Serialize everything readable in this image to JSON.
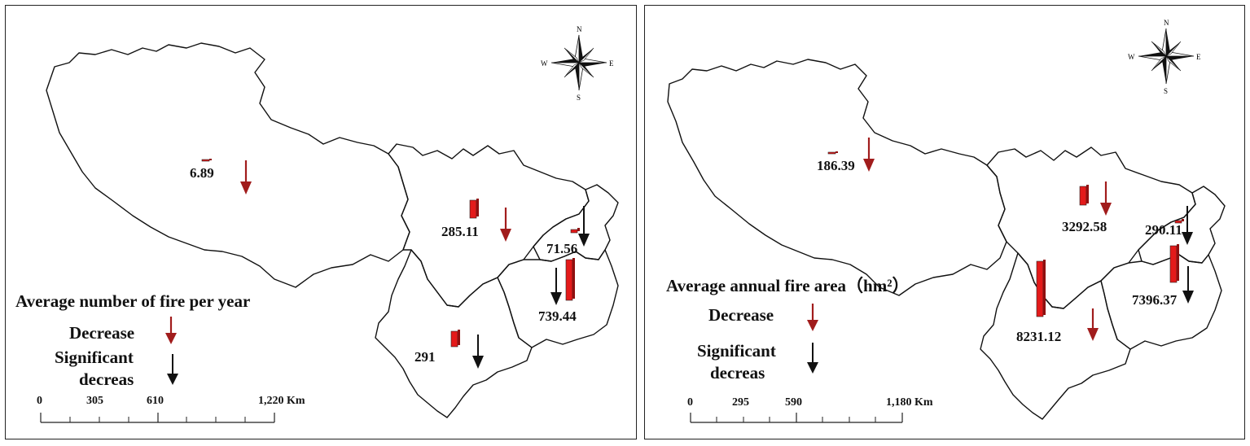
{
  "colors": {
    "decrease_arrow": "#a11c1c",
    "significant_arrow": "#111111",
    "bar_fill": "#e41a1a",
    "bar_side": "#8f0f0f",
    "outline": "#111111"
  },
  "compass": {
    "n": "N",
    "s": "S",
    "e": "E",
    "w": "W"
  },
  "panels": [
    {
      "title": "Average number of fire per year",
      "legend": {
        "decrease": "Decrease",
        "significant_line1": "Significant",
        "significant_line2": "decreas"
      },
      "scale": {
        "ticks": [
          "0",
          "305",
          "610",
          "1,220 Km"
        ]
      },
      "regions": [
        {
          "id": "tibet",
          "label": "6.89",
          "value": 6.89,
          "trend": "decrease"
        },
        {
          "id": "sichuan",
          "label": "285.11",
          "value": 285.11,
          "trend": "decrease"
        },
        {
          "id": "chongqing",
          "label": "71.56",
          "value": 71.56,
          "trend": "significant"
        },
        {
          "id": "guizhou",
          "label": "739.44",
          "value": 739.44,
          "trend": "significant"
        },
        {
          "id": "yunnan",
          "label": "291",
          "value": 291,
          "trend": "significant"
        }
      ]
    },
    {
      "title": "Average annual fire area（hm²）",
      "legend": {
        "decrease": "Decrease",
        "significant_line1": "Significant",
        "significant_line2": "decreas"
      },
      "scale": {
        "ticks": [
          "0",
          "295",
          "590",
          "1,180 Km"
        ]
      },
      "regions": [
        {
          "id": "tibet",
          "label": "186.39",
          "value": 186.39,
          "trend": "decrease"
        },
        {
          "id": "sichuan",
          "label": "3292.58",
          "value": 3292.58,
          "trend": "decrease"
        },
        {
          "id": "chongqing",
          "label": "290.11",
          "value": 290.11,
          "trend": "significant"
        },
        {
          "id": "guizhou",
          "label": "7396.37",
          "value": 7396.37,
          "trend": "significant"
        },
        {
          "id": "yunnan",
          "label": "8231.12",
          "value": 8231.12,
          "trend": "decrease"
        }
      ]
    }
  ]
}
